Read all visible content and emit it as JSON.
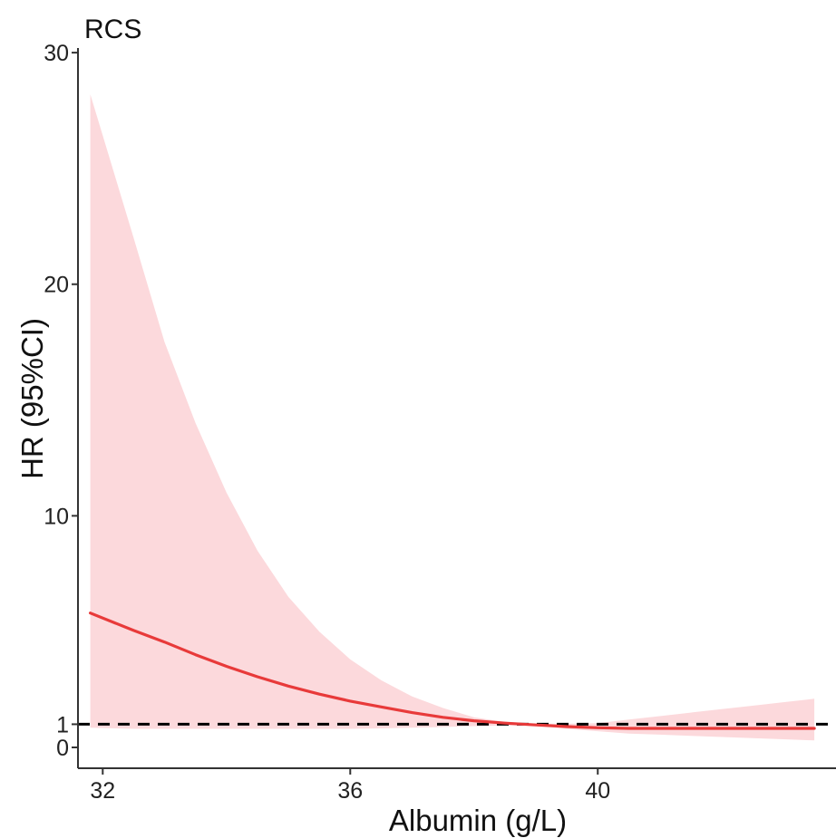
{
  "chart_data": {
    "type": "line",
    "title": "RCS",
    "xlabel": "Albumin (g/L)",
    "ylabel": "HR (95%CI)",
    "xlim": [
      31.6,
      43.85
    ],
    "ylim": [
      -0.9,
      30.2
    ],
    "x_ticks": [
      {
        "value": 32,
        "label": "32"
      },
      {
        "value": 36,
        "label": "36"
      },
      {
        "value": 40,
        "label": "40"
      }
    ],
    "y_ticks": [
      {
        "value": 0,
        "label": "0"
      },
      {
        "value": 1,
        "label": "1"
      },
      {
        "value": 10,
        "label": "10"
      },
      {
        "value": 20,
        "label": "20"
      },
      {
        "value": 30,
        "label": "30"
      }
    ],
    "reference_line": {
      "y": 1,
      "style": "dashed",
      "color": "#000000"
    },
    "series": [
      {
        "x": [
          31.8,
          32.5,
          33.0,
          33.5,
          34.0,
          34.5,
          35.0,
          35.5,
          36.0,
          36.5,
          37.0,
          37.5,
          38.0,
          38.5,
          39.0,
          39.5,
          40.0,
          40.5,
          41.0,
          41.5,
          42.0,
          42.5,
          43.0,
          43.5
        ],
        "y": [
          5.8,
          5.05,
          4.55,
          4.0,
          3.5,
          3.05,
          2.65,
          2.3,
          2.0,
          1.75,
          1.5,
          1.3,
          1.15,
          1.05,
          0.97,
          0.9,
          0.85,
          0.82,
          0.82,
          0.82,
          0.82,
          0.82,
          0.82,
          0.82
        ],
        "lower": [
          0.85,
          0.8,
          0.8,
          0.8,
          0.8,
          0.8,
          0.8,
          0.8,
          0.8,
          0.82,
          0.85,
          0.88,
          0.92,
          0.95,
          0.95,
          0.8,
          0.7,
          0.6,
          0.55,
          0.5,
          0.45,
          0.4,
          0.35,
          0.3
        ],
        "upper": [
          28.2,
          22.0,
          17.5,
          14.0,
          11.0,
          8.5,
          6.5,
          5.0,
          3.8,
          2.9,
          2.2,
          1.7,
          1.3,
          1.1,
          1.02,
          1.02,
          1.05,
          1.2,
          1.35,
          1.5,
          1.65,
          1.8,
          1.95,
          2.1
        ],
        "color": "#e83a3a",
        "band_color": "#fcd9dc"
      }
    ],
    "grid": false
  }
}
